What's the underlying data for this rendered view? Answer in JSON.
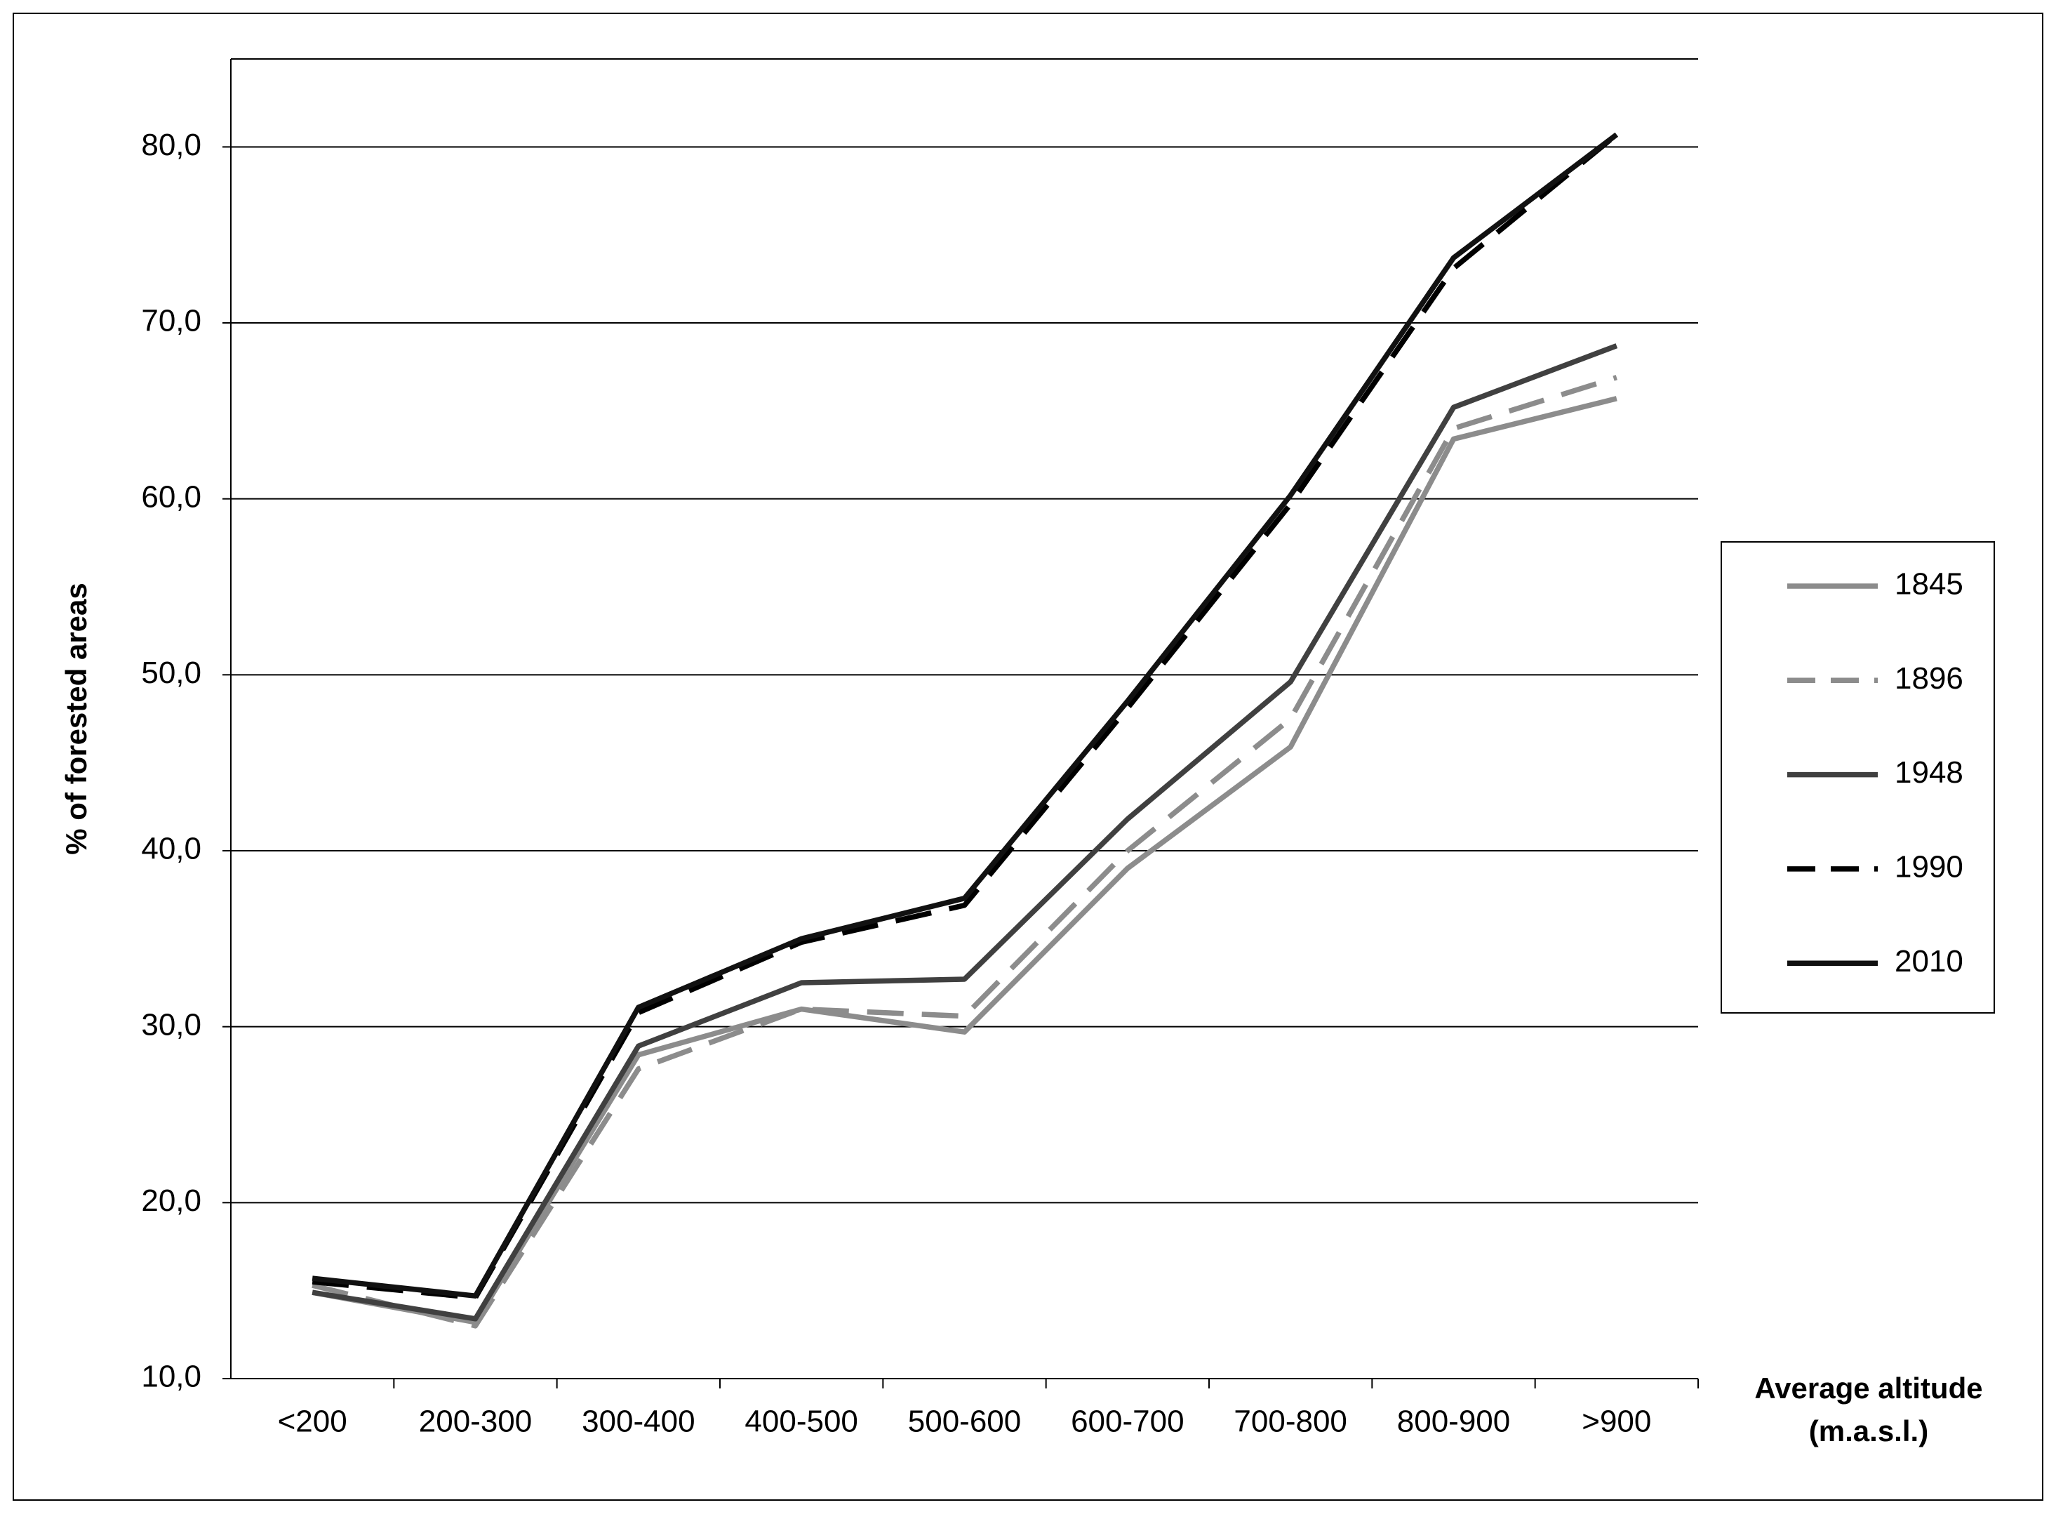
{
  "chart_data": {
    "type": "line",
    "y_label": "% of forested areas",
    "x_label": [
      "Average altitude",
      "(m.a.s.l.)"
    ],
    "categories": [
      "<200",
      "200-300",
      "300-400",
      "400-500",
      "500-600",
      "600-700",
      "700-800",
      "800-900",
      ">900"
    ],
    "series": [
      {
        "name": "1845",
        "color": "#8c8c8c",
        "dashed": false,
        "values": [
          14.9,
          13.2,
          28.4,
          31.0,
          29.7,
          39.0,
          45.9,
          63.4,
          65.7
        ]
      },
      {
        "name": "1896",
        "color": "#8c8c8c",
        "dashed": true,
        "values": [
          15.3,
          13.0,
          27.6,
          31.0,
          30.6,
          40.0,
          47.5,
          64.0,
          66.9
        ]
      },
      {
        "name": "1948",
        "color": "#404040",
        "dashed": false,
        "values": [
          14.9,
          13.4,
          28.9,
          32.5,
          32.7,
          41.8,
          49.6,
          65.2,
          68.7
        ]
      },
      {
        "name": "1990",
        "color": "#000000",
        "dashed": true,
        "values": [
          15.5,
          14.6,
          30.8,
          34.8,
          36.9,
          48.1,
          59.7,
          73.1,
          80.7
        ]
      },
      {
        "name": "2010",
        "color": "#111111",
        "dashed": false,
        "values": [
          15.7,
          14.7,
          31.1,
          35.0,
          37.3,
          48.5,
          60.2,
          73.7,
          80.7
        ]
      }
    ],
    "ylim": [
      10,
      85
    ],
    "yticks": [
      {
        "value": 10,
        "label": "10,0"
      },
      {
        "value": 20,
        "label": "20,0"
      },
      {
        "value": 30,
        "label": "30,0"
      },
      {
        "value": 40,
        "label": "40,0"
      },
      {
        "value": 50,
        "label": "50,0"
      },
      {
        "value": 60,
        "label": "60,0"
      },
      {
        "value": 70,
        "label": "70,0"
      },
      {
        "value": 80,
        "label": "80,0"
      }
    ],
    "grid": true,
    "legend": "right"
  }
}
